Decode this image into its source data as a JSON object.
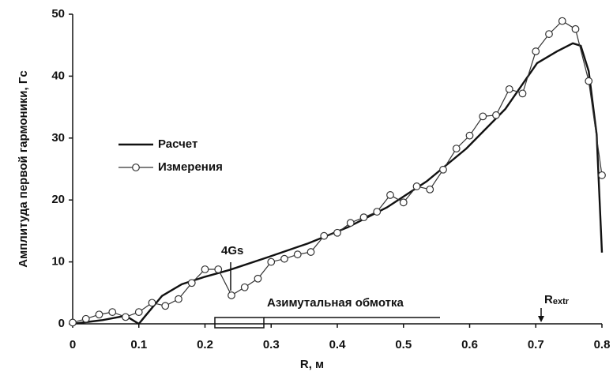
{
  "chart_data": {
    "type": "line",
    "x_label": "R, м",
    "y_label": "Амплитуда первой гармоники, Гс",
    "xlim": [
      0,
      0.8
    ],
    "ylim": [
      0,
      50
    ],
    "xticks": [
      0,
      0.1,
      0.2,
      0.3,
      0.4,
      0.5,
      0.6,
      0.7,
      0.8
    ],
    "yticks": [
      0,
      10,
      20,
      30,
      40,
      50
    ],
    "grid": false,
    "legend": "upper left",
    "annotations": {
      "peak_note": "4Gs",
      "winding": "Азимутальная обмотка",
      "rextr_main": "R",
      "rextr_sub": "extr"
    },
    "series": [
      {
        "name": "Расчет",
        "color": "#111111",
        "marker": "none",
        "x": [
          0,
          0.045,
          0.08,
          0.1,
          0.11,
          0.135,
          0.165,
          0.2,
          0.237,
          0.296,
          0.356,
          0.416,
          0.475,
          0.535,
          0.595,
          0.654,
          0.702,
          0.732,
          0.756,
          0.768,
          0.78,
          0.792,
          0.8
        ],
        "values": [
          0,
          0.6,
          1.3,
          0,
          1.3,
          4.5,
          6.4,
          7.6,
          8.7,
          10.8,
          13.0,
          15.6,
          18.8,
          23.0,
          28.3,
          34.7,
          42.1,
          44.0,
          45.3,
          44.9,
          40.8,
          30.6,
          11.5
        ]
      },
      {
        "name": "Измерения",
        "color": "#333333",
        "marker": "circle",
        "x": [
          0,
          0.02,
          0.04,
          0.06,
          0.08,
          0.1,
          0.12,
          0.14,
          0.16,
          0.18,
          0.2,
          0.22,
          0.24,
          0.26,
          0.28,
          0.3,
          0.32,
          0.34,
          0.36,
          0.38,
          0.4,
          0.42,
          0.44,
          0.46,
          0.48,
          0.5,
          0.52,
          0.54,
          0.56,
          0.58,
          0.6,
          0.62,
          0.64,
          0.66,
          0.68,
          0.7,
          0.72,
          0.74,
          0.76,
          0.78,
          0.8
        ],
        "values": [
          0.2,
          0.8,
          1.5,
          1.9,
          1.1,
          1.9,
          3.4,
          2.9,
          4.0,
          6.6,
          8.8,
          8.8,
          4.6,
          5.9,
          7.3,
          10.0,
          10.5,
          11.2,
          11.6,
          14.2,
          14.7,
          16.3,
          17.2,
          18.1,
          20.8,
          19.6,
          22.2,
          21.7,
          24.9,
          28.3,
          30.4,
          33.5,
          33.7,
          37.9,
          37.2,
          44.0,
          46.8,
          48.9,
          47.6,
          39.2,
          24.0
        ]
      }
    ]
  }
}
